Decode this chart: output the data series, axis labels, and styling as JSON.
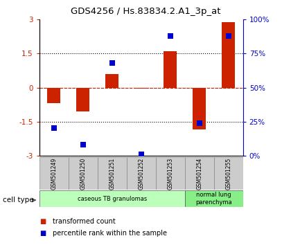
{
  "title": "GDS4256 / Hs.83834.2.A1_3p_at",
  "samples": [
    "GSM501249",
    "GSM501250",
    "GSM501251",
    "GSM501252",
    "GSM501253",
    "GSM501254",
    "GSM501255"
  ],
  "transformed_count": [
    -0.7,
    -1.05,
    0.6,
    -0.05,
    1.6,
    -1.85,
    2.9
  ],
  "percentile_rank": [
    20,
    8,
    68,
    1,
    88,
    24,
    88
  ],
  "ylim_left": [
    -3,
    3
  ],
  "yticks_left": [
    -3,
    -1.5,
    0,
    1.5,
    3
  ],
  "ytick_labels_left": [
    "-3",
    "-1.5",
    "0",
    "1.5",
    "3"
  ],
  "ylim_right": [
    0,
    100
  ],
  "yticks_right": [
    0,
    25,
    50,
    75,
    100
  ],
  "ytick_labels_right": [
    "0%",
    "25%",
    "50%",
    "75%",
    "100%"
  ],
  "hlines_dotted": [
    -1.5,
    1.5
  ],
  "hline_dashed_red": 0,
  "hline_dotted_zero": 0,
  "bar_color": "#CC2200",
  "scatter_color": "#0000CC",
  "bar_width": 0.45,
  "scatter_size": 40,
  "cell_type_groups": [
    {
      "label": "caseous TB granulomas",
      "indices": [
        0,
        1,
        2,
        3,
        4
      ],
      "color": "#BBFFBB"
    },
    {
      "label": "normal lung\nparenchyma",
      "indices": [
        5,
        6
      ],
      "color": "#88EE88"
    }
  ],
  "cell_type_label": "cell type",
  "legend_items": [
    {
      "label": "transformed count",
      "color": "#CC2200"
    },
    {
      "label": "percentile rank within the sample",
      "color": "#0000CC"
    }
  ],
  "bg_color": "#FFFFFF",
  "plot_bg_color": "#FFFFFF",
  "sample_bg_color": "#CCCCCC"
}
